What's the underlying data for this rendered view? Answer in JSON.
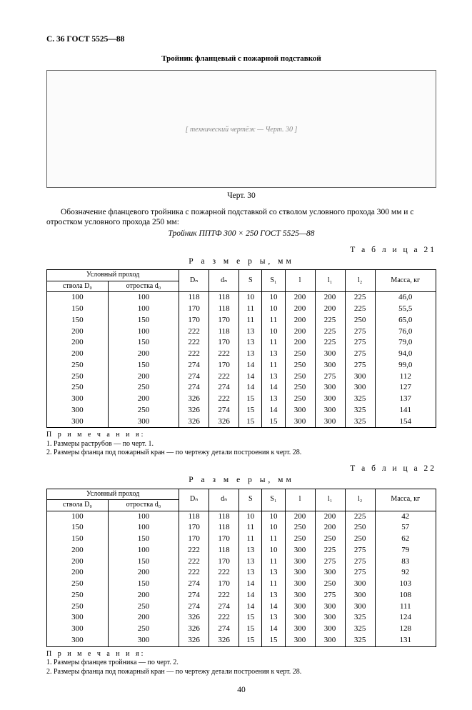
{
  "doc_header": "С. 36 ГОСТ 5525—88",
  "figure": {
    "title": "Тройник фланцевый с пожарной подставкой",
    "caption": "Черт. 30",
    "placeholder": "[ технический чертёж — Черт. 30 ]"
  },
  "designation": {
    "line1": "Обозначение фланцевого тройника с пожарной подставкой со стволом условного прохода 300 мм и с отростком условного прохода 250 мм:",
    "line2": "Тройник ППТФ 300 × 250 ГОСТ 5525—88"
  },
  "common": {
    "dims_label": "Р а з м е р ы,   мм",
    "hdr_cond": "Условный  проход",
    "hdr_D0": "ствола  D₀",
    "hdr_d0": "отростка  d₀",
    "hdr_Dn": "Dₙ",
    "hdr_dn": "dₙ",
    "hdr_S": "S",
    "hdr_S1": "S₁",
    "hdr_l": "l",
    "hdr_l1": "l₁",
    "hdr_l2": "l₂",
    "hdr_mass": "Масса, кг"
  },
  "table21": {
    "label": "Т а б л и ц а  21",
    "rows": [
      [
        "100",
        "100",
        "118",
        "118",
        "10",
        "10",
        "200",
        "200",
        "225",
        "46,0"
      ],
      [
        "150",
        "100",
        "170",
        "118",
        "11",
        "10",
        "200",
        "200",
        "225",
        "55,5"
      ],
      [
        "150",
        "150",
        "170",
        "170",
        "11",
        "11",
        "200",
        "225",
        "250",
        "65,0"
      ],
      [
        "200",
        "100",
        "222",
        "118",
        "13",
        "10",
        "200",
        "225",
        "275",
        "76,0"
      ],
      [
        "200",
        "150",
        "222",
        "170",
        "13",
        "11",
        "200",
        "225",
        "275",
        "79,0"
      ],
      [
        "200",
        "200",
        "222",
        "222",
        "13",
        "13",
        "250",
        "300",
        "275",
        "94,0"
      ],
      [
        "250",
        "150",
        "274",
        "170",
        "14",
        "11",
        "250",
        "300",
        "275",
        "99,0"
      ],
      [
        "250",
        "200",
        "274",
        "222",
        "14",
        "13",
        "250",
        "275",
        "300",
        "112"
      ],
      [
        "250",
        "250",
        "274",
        "274",
        "14",
        "14",
        "250",
        "300",
        "300",
        "127"
      ],
      [
        "300",
        "200",
        "326",
        "222",
        "15",
        "13",
        "250",
        "300",
        "325",
        "137"
      ],
      [
        "300",
        "250",
        "326",
        "274",
        "15",
        "14",
        "300",
        "300",
        "325",
        "141"
      ],
      [
        "300",
        "300",
        "326",
        "326",
        "15",
        "15",
        "300",
        "300",
        "325",
        "154"
      ]
    ],
    "notes_title": "П р и м е ч а н и я:",
    "note1": "1. Размеры раструбов — по черт. 1.",
    "note2": "2. Размеры фланца под пожарный кран — по чертежу детали построения к черт. 28."
  },
  "table22": {
    "label": "Т а б л и ц а  22",
    "rows": [
      [
        "100",
        "100",
        "118",
        "118",
        "10",
        "10",
        "200",
        "200",
        "225",
        "42"
      ],
      [
        "150",
        "100",
        "170",
        "118",
        "11",
        "10",
        "250",
        "200",
        "250",
        "57"
      ],
      [
        "150",
        "150",
        "170",
        "170",
        "11",
        "11",
        "250",
        "250",
        "250",
        "62"
      ],
      [
        "200",
        "100",
        "222",
        "118",
        "13",
        "10",
        "300",
        "225",
        "275",
        "79"
      ],
      [
        "200",
        "150",
        "222",
        "170",
        "13",
        "11",
        "300",
        "275",
        "275",
        "83"
      ],
      [
        "200",
        "200",
        "222",
        "222",
        "13",
        "13",
        "300",
        "300",
        "275",
        "92"
      ],
      [
        "250",
        "150",
        "274",
        "170",
        "14",
        "11",
        "300",
        "250",
        "300",
        "103"
      ],
      [
        "250",
        "200",
        "274",
        "222",
        "14",
        "13",
        "300",
        "275",
        "300",
        "108"
      ],
      [
        "250",
        "250",
        "274",
        "274",
        "14",
        "14",
        "300",
        "300",
        "300",
        "111"
      ],
      [
        "300",
        "200",
        "326",
        "222",
        "15",
        "13",
        "300",
        "300",
        "325",
        "124"
      ],
      [
        "300",
        "250",
        "326",
        "274",
        "15",
        "14",
        "300",
        "300",
        "325",
        "128"
      ],
      [
        "300",
        "300",
        "326",
        "326",
        "15",
        "15",
        "300",
        "300",
        "325",
        "131"
      ]
    ],
    "notes_title": "П р и м е ч а н и я:",
    "note1": "1. Размеры фланцев тройника — по черт. 2.",
    "note2": "2. Размеры фланца под пожарный кран — по чертежу детали построения к черт. 28."
  },
  "page_number": "40"
}
